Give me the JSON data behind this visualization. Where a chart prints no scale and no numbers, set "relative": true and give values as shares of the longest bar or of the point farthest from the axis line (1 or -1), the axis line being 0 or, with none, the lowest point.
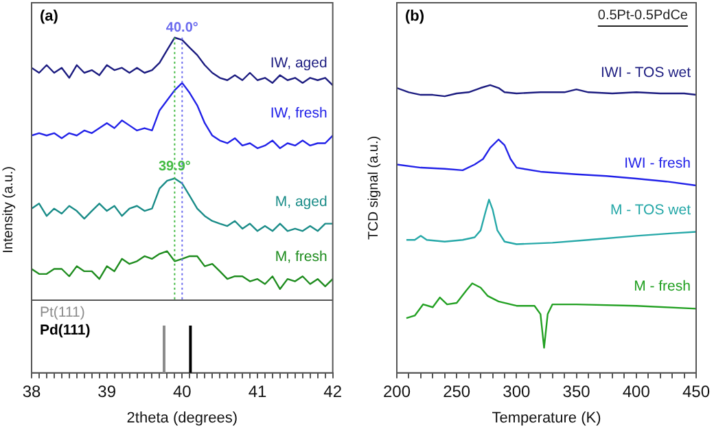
{
  "chart_data": [
    {
      "type": "line",
      "title": "(a)",
      "xlabel": "2theta (degrees)",
      "ylabel": "Intensity (a.u.)",
      "relative": true,
      "marker": "none",
      "tick_labels": "x",
      "x": [
        38.0,
        38.1,
        38.2,
        38.3,
        38.4,
        38.5,
        38.6,
        38.7,
        38.8,
        38.9,
        39.0,
        39.1,
        39.2,
        39.3,
        39.4,
        39.5,
        39.6,
        39.7,
        39.8,
        39.9,
        40.0,
        40.1,
        40.2,
        40.3,
        40.4,
        40.5,
        40.6,
        40.7,
        40.8,
        40.9,
        41.0,
        41.1,
        41.2,
        41.3,
        41.4,
        41.5,
        41.6,
        41.7,
        41.8,
        41.9,
        42.0
      ],
      "xlim": [
        38,
        42
      ],
      "xticks": [
        38,
        {
          "value": 38.1,
          "label": null
        },
        {
          "value": 38.2,
          "label": null
        },
        {
          "value": 38.3,
          "label": null
        },
        {
          "value": 38.4,
          "label": null
        },
        {
          "value": 38.5,
          "label": null
        },
        {
          "value": 38.6,
          "label": null
        },
        {
          "value": 38.7,
          "label": null
        },
        {
          "value": 38.8,
          "label": null
        },
        {
          "value": 38.9,
          "label": null
        },
        39,
        {
          "value": 39.1,
          "label": null
        },
        {
          "value": 39.2,
          "label": null
        },
        {
          "value": 39.3,
          "label": null
        },
        {
          "value": 39.4,
          "label": null
        },
        {
          "value": 39.5,
          "label": null
        },
        {
          "value": 39.6,
          "label": null
        },
        {
          "value": 39.7,
          "label": null
        },
        {
          "value": 39.8,
          "label": null
        },
        {
          "value": 39.9,
          "label": null
        },
        40,
        {
          "value": 40.1,
          "label": null
        },
        {
          "value": 40.2,
          "label": null
        },
        {
          "value": 40.3,
          "label": null
        },
        {
          "value": 40.4,
          "label": null
        },
        {
          "value": 40.5,
          "label": null
        },
        {
          "value": 40.6,
          "label": null
        },
        {
          "value": 40.7,
          "label": null
        },
        {
          "value": 40.8,
          "label": null
        },
        {
          "value": 40.9,
          "label": null
        },
        41,
        {
          "value": 41.1,
          "label": null
        },
        {
          "value": 41.2,
          "label": null
        },
        {
          "value": 41.3,
          "label": null
        },
        {
          "value": 41.4,
          "label": null
        },
        {
          "value": 41.5,
          "label": null
        },
        {
          "value": 41.6,
          "label": null
        },
        {
          "value": 41.7,
          "label": null
        },
        {
          "value": 41.8,
          "label": null
        },
        {
          "value": 41.9,
          "label": null
        },
        42
      ],
      "series": [
        {
          "name": "IW, aged",
          "color": "#1c1c80",
          "values": [
            0.91,
            0.895,
            0.918,
            0.895,
            0.91,
            0.88,
            0.918,
            0.895,
            0.903,
            0.888,
            0.918,
            0.903,
            0.91,
            0.895,
            0.91,
            0.895,
            0.903,
            0.925,
            0.963,
            1.0,
            0.993,
            0.97,
            0.948,
            0.918,
            0.895,
            0.88,
            0.873,
            0.888,
            0.873,
            0.895,
            0.873,
            0.88,
            0.865,
            0.888,
            0.873,
            0.88,
            0.865,
            0.88,
            0.873,
            0.88,
            0.858
          ]
        },
        {
          "name": "IW, fresh",
          "color": "#2222e8",
          "values": [
            0.708,
            0.715,
            0.708,
            0.715,
            0.7,
            0.715,
            0.708,
            0.723,
            0.715,
            0.73,
            0.745,
            0.73,
            0.753,
            0.738,
            0.723,
            0.73,
            0.723,
            0.783,
            0.813,
            0.843,
            0.865,
            0.835,
            0.798,
            0.745,
            0.708,
            0.693,
            0.685,
            0.7,
            0.678,
            0.685,
            0.67,
            0.678,
            0.693,
            0.67,
            0.685,
            0.678,
            0.693,
            0.678,
            0.685,
            0.685,
            0.708
          ]
        },
        {
          "name": "M, aged",
          "color": "#1a8c88",
          "values": [
            0.49,
            0.505,
            0.468,
            0.49,
            0.475,
            0.498,
            0.483,
            0.46,
            0.483,
            0.505,
            0.483,
            0.498,
            0.468,
            0.49,
            0.498,
            0.483,
            0.49,
            0.55,
            0.573,
            0.58,
            0.565,
            0.528,
            0.49,
            0.468,
            0.453,
            0.445,
            0.438,
            0.453,
            0.43,
            0.445,
            0.423,
            0.438,
            0.423,
            0.445,
            0.423,
            0.43,
            0.423,
            0.438,
            0.423,
            0.445,
            0.445
          ]
        },
        {
          "name": "M, fresh",
          "color": "#1e8c1e",
          "values": [
            0.31,
            0.295,
            0.295,
            0.31,
            0.31,
            0.288,
            0.318,
            0.303,
            0.303,
            0.28,
            0.318,
            0.303,
            0.34,
            0.325,
            0.333,
            0.348,
            0.34,
            0.355,
            0.363,
            0.333,
            0.34,
            0.348,
            0.348,
            0.318,
            0.325,
            0.303,
            0.28,
            0.288,
            0.288,
            0.273,
            0.28,
            0.265,
            0.288,
            0.25,
            0.28,
            0.273,
            0.288,
            0.265,
            0.28,
            0.258,
            0.28
          ]
        }
      ],
      "ref_lines": [
        {
          "axis": "x",
          "value": 40.0,
          "color": "#6a6aee",
          "line_style": "dotted"
        },
        {
          "axis": "x",
          "value": 39.9,
          "color": "#44bb44",
          "line_style": "dotted"
        },
        {
          "axis": "y",
          "value": 0.217,
          "color": "#555555"
        },
        {
          "axis": "x",
          "value": 39.76,
          "label": "Pt(111)",
          "color": "#8c8c8c"
        },
        {
          "axis": "x",
          "value": 40.11,
          "label": "Pd(111)",
          "color": "#000000"
        }
      ],
      "annotations": [
        {
          "text": "40.0°",
          "x": 40.0,
          "y": 0.993
        },
        {
          "text": "39.9°",
          "x": 39.9,
          "y": 0.58
        }
      ]
    },
    {
      "type": "line",
      "title": "(b)",
      "xlabel": "Temperature (K)",
      "ylabel": "TCD signal (a.u.)",
      "relative": true,
      "marker": "none",
      "tick_labels": "x",
      "xlim": [
        200,
        450
      ],
      "xticks": [
        200,
        {
          "value": 210,
          "label": null
        },
        {
          "value": 220,
          "label": null
        },
        {
          "value": 230,
          "label": null
        },
        {
          "value": 240,
          "label": null
        },
        250,
        {
          "value": 260,
          "label": null
        },
        {
          "value": 270,
          "label": null
        },
        {
          "value": 280,
          "label": null
        },
        {
          "value": 290,
          "label": null
        },
        300,
        {
          "value": 310,
          "label": null
        },
        {
          "value": 320,
          "label": null
        },
        {
          "value": 330,
          "label": null
        },
        {
          "value": 340,
          "label": null
        },
        350,
        {
          "value": 360,
          "label": null
        },
        {
          "value": 370,
          "label": null
        },
        {
          "value": 380,
          "label": null
        },
        {
          "value": 390,
          "label": null
        },
        400,
        {
          "value": 410,
          "label": null
        },
        {
          "value": 420,
          "label": null
        },
        {
          "value": 430,
          "label": null
        },
        {
          "value": 440,
          "label": null
        },
        450
      ],
      "series": [
        {
          "name": "IWI - TOS wet",
          "color": "#1c1c80",
          "x": [
            200,
            210,
            220,
            230,
            240,
            250,
            260,
            270,
            278,
            285,
            290,
            300,
            320,
            340,
            350,
            360,
            380,
            400,
            420,
            440,
            450
          ],
          "values": [
            0.99,
            0.975,
            0.966,
            0.966,
            0.961,
            0.971,
            0.975,
            0.99,
            1.0,
            0.99,
            0.975,
            0.971,
            0.975,
            0.975,
            0.985,
            0.975,
            0.971,
            0.975,
            0.971,
            0.971,
            0.966
          ]
        },
        {
          "name": "IWI - fresh",
          "color": "#2222e8",
          "x": [
            200,
            220,
            240,
            255,
            265,
            272,
            278,
            285,
            290,
            295,
            300,
            320,
            350,
            375,
            400,
            425,
            450
          ],
          "values": [
            0.724,
            0.713,
            0.709,
            0.704,
            0.724,
            0.743,
            0.782,
            0.811,
            0.791,
            0.743,
            0.713,
            0.699,
            0.69,
            0.684,
            0.675,
            0.665,
            0.651
          ]
        },
        {
          "name": "M - TOS wet",
          "color": "#26a8a8",
          "x": [
            208,
            215,
            220,
            225,
            240,
            255,
            265,
            270,
            274,
            277,
            280,
            284,
            290,
            300,
            330,
            360,
            400,
            430,
            450
          ],
          "values": [
            0.462,
            0.462,
            0.476,
            0.462,
            0.456,
            0.462,
            0.471,
            0.495,
            0.558,
            0.602,
            0.568,
            0.495,
            0.456,
            0.447,
            0.452,
            0.462,
            0.476,
            0.485,
            0.49
          ]
        },
        {
          "name": "M - fresh",
          "color": "#22a022",
          "x": [
            208,
            215,
            222,
            230,
            236,
            242,
            250,
            258,
            263,
            270,
            276,
            285,
            300,
            315,
            320,
            323,
            326,
            330,
            350,
            400,
            450
          ],
          "values": [
            0.19,
            0.199,
            0.238,
            0.228,
            0.262,
            0.238,
            0.243,
            0.286,
            0.311,
            0.296,
            0.267,
            0.248,
            0.233,
            0.233,
            0.204,
            0.087,
            0.204,
            0.238,
            0.238,
            0.233,
            0.223
          ]
        }
      ],
      "annotations": [
        "0.5Pt-0.5PdCe"
      ]
    }
  ]
}
